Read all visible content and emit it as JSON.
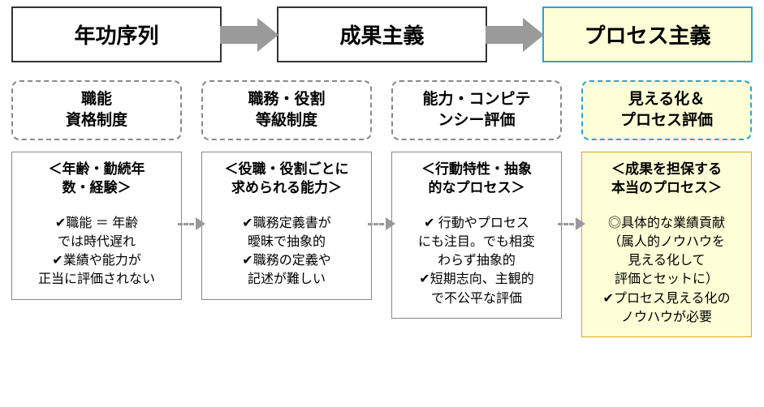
{
  "colors": {
    "normal_border": "#333333",
    "highlight_border_top": "#2aa3d4",
    "highlight_bg": "#feffd6",
    "arrow_gray": "#9a9a9a",
    "dashed_border": "#888888",
    "detail_highlight_border": "#daa520"
  },
  "top": {
    "items": [
      {
        "label": "年功序列",
        "variant": "normal"
      },
      {
        "label": "成果主義",
        "variant": "normal"
      },
      {
        "label": "プロセス主義",
        "variant": "highlight"
      }
    ]
  },
  "columns": [
    {
      "sub": "職能\n資格制度",
      "variant": "normal",
      "head": "＜年齢・勤続年\n数・経験＞",
      "body": [
        "✔職能 ＝ 年齢",
        "では時代遅れ",
        "✔業績や能力が",
        "正当に評価されない"
      ]
    },
    {
      "sub": "職務・役割\n等級制度",
      "variant": "normal",
      "head": "＜役職・役割ごとに\n求められる能力＞",
      "body": [
        "✔職務定義書が",
        "曖昧で抽象的",
        "✔職務の定義や",
        "記述が難しい"
      ]
    },
    {
      "sub": "能力・コンピテ\nンシー評価",
      "variant": "normal",
      "head": "＜行動特性・抽象\n的なプロセス＞",
      "body": [
        "✔ 行動やプロセス",
        "にも注目。でも相変",
        "わらず抽象的",
        "✔短期志向、主観的",
        "で不公平な評価"
      ]
    },
    {
      "sub": "見える化＆\nプロセス評価",
      "variant": "highlight",
      "head": "＜成果を担保する\n本当のプロセス＞",
      "body": [
        "◎具体的な業績貢献",
        "（属人的ノウハウを",
        "見える化して",
        "評価とセットに）",
        "✔プロセス見える化の",
        "ノウハウが必要"
      ]
    }
  ]
}
